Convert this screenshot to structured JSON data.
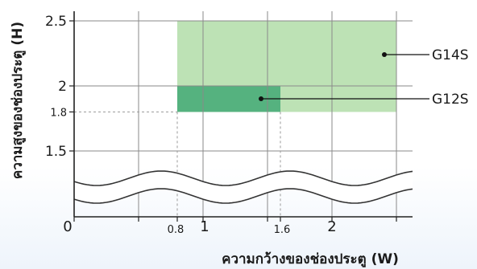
{
  "chart_data": {
    "type": "area",
    "title": "",
    "xlabel": "ความกว้างของช่องประตู (W)",
    "ylabel": "ความสูงของช่องประตู (H)",
    "xlim": [
      0,
      2.5
    ],
    "ylim": [
      1,
      2.5
    ],
    "y_axis_break": "between 1 and 1.5",
    "grid": true,
    "x_ticks": [
      {
        "value": 0,
        "label": "0",
        "style": "major"
      },
      {
        "value": 0.8,
        "label": "0.8",
        "style": "minor"
      },
      {
        "value": 1,
        "label": "1",
        "style": "major"
      },
      {
        "value": 1.6,
        "label": "1.6",
        "style": "minor"
      },
      {
        "value": 2,
        "label": "2",
        "style": "major"
      }
    ],
    "y_ticks": [
      {
        "value": 1.5,
        "label": "1.5",
        "style": "major"
      },
      {
        "value": 1.8,
        "label": "1.8",
        "style": "minor"
      },
      {
        "value": 2,
        "label": "2",
        "style": "major"
      },
      {
        "value": 2.5,
        "label": "2.5",
        "style": "major"
      }
    ],
    "series": [
      {
        "name": "G14S",
        "x_range": [
          0.8,
          2.5
        ],
        "y_range": [
          1.8,
          2.5
        ],
        "color": "#bde2b5"
      },
      {
        "name": "G12S",
        "x_range": [
          0.8,
          1.6
        ],
        "y_range": [
          1.8,
          2.0
        ],
        "color": "#55b27f"
      }
    ]
  }
}
